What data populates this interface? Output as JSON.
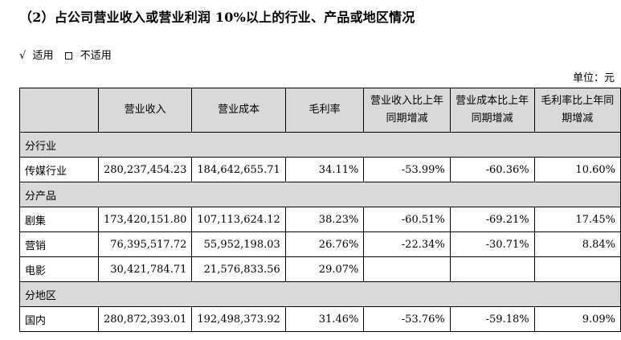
{
  "heading": "（2）占公司营业收入或营业利润 10%以上的行业、产品或地区情况",
  "applicability": {
    "check_mark": "√",
    "applicable": "适用",
    "not_applicable": "不适用"
  },
  "unit": "单位：元",
  "table": {
    "headers": [
      "",
      "营业收入",
      "营业成本",
      "毛利率",
      [
        "营业收入比上年",
        "同期增减"
      ],
      [
        "营业成本比上年",
        "同期增减"
      ],
      [
        "毛利率比上年同",
        "期增减"
      ]
    ],
    "sections": [
      {
        "title": "分行业",
        "rows": [
          [
            "传媒行业",
            "280,237,454.23",
            "184,642,655.71",
            "34.11%",
            "-53.99%",
            "-60.36%",
            "10.60%"
          ]
        ]
      },
      {
        "title": "分产品",
        "rows": [
          [
            "剧集",
            "173,420,151.80",
            "107,113,624.12",
            "38.23%",
            "-60.51%",
            "-69.21%",
            "17.45%"
          ],
          [
            "营销",
            "76,395,517.72",
            "55,952,198.03",
            "26.76%",
            "-22.34%",
            "-30.71%",
            "8.84%"
          ],
          [
            "电影",
            "30,421,784.71",
            "21,576,833.56",
            "29.07%",
            "",
            "",
            ""
          ]
        ]
      },
      {
        "title": "分地区",
        "rows": [
          [
            "国内",
            "280,872,393.01",
            "192,498,373.92",
            "31.46%",
            "-53.76%",
            "-59.18%",
            "9.09%"
          ]
        ]
      }
    ]
  }
}
